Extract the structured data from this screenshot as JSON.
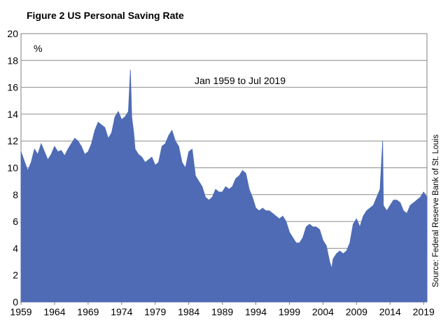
{
  "figure": {
    "title": "Figure 2 US Personal Saving Rate"
  },
  "chart_data": {
    "type": "area",
    "title": "Figure 2 US Personal Saving Rate",
    "ylabel": "%",
    "annotation": "Jan 1959 to Jul 2019",
    "source": "Source: Federal Reserve Bank of St. Louis",
    "ylim": [
      0,
      20
    ],
    "yticks": [
      0,
      2,
      4,
      6,
      8,
      10,
      12,
      14,
      16,
      18,
      20
    ],
    "xlim": [
      1959.0,
      2019.5
    ],
    "xticks": [
      1959,
      1964,
      1969,
      1974,
      1979,
      1984,
      1989,
      1994,
      1999,
      2004,
      2009,
      2014,
      2019
    ],
    "grid": "horizontal",
    "color": "#4F6BB5",
    "series": [
      {
        "x": [
          1959.0,
          1959.5,
          1960.0,
          1960.5,
          1961.0,
          1961.5,
          1962.0,
          1962.5,
          1963.0,
          1963.5,
          1964.0,
          1964.5,
          1965.0,
          1965.5,
          1966.0,
          1966.5,
          1967.0,
          1967.5,
          1968.0,
          1968.5,
          1969.0,
          1969.5,
          1970.0,
          1970.5,
          1971.0,
          1971.5,
          1972.0,
          1972.5,
          1973.0,
          1973.5,
          1974.0,
          1974.5,
          1975.0,
          1975.3,
          1975.5,
          1975.8,
          1976.0,
          1976.5,
          1977.0,
          1977.5,
          1978.0,
          1978.5,
          1979.0,
          1979.5,
          1980.0,
          1980.5,
          1981.0,
          1981.5,
          1982.0,
          1982.5,
          1983.0,
          1983.5,
          1984.0,
          1984.5,
          1985.0,
          1985.5,
          1986.0,
          1986.5,
          1987.0,
          1987.5,
          1988.0,
          1988.5,
          1989.0,
          1989.5,
          1990.0,
          1990.5,
          1991.0,
          1991.5,
          1992.0,
          1992.5,
          1993.0,
          1993.5,
          1994.0,
          1994.5,
          1995.0,
          1995.5,
          1996.0,
          1996.5,
          1997.0,
          1997.5,
          1998.0,
          1998.5,
          1999.0,
          1999.5,
          2000.0,
          2000.5,
          2001.0,
          2001.5,
          2002.0,
          2002.5,
          2003.0,
          2003.5,
          2004.0,
          2004.5,
          2005.0,
          2005.3,
          2005.5,
          2006.0,
          2006.5,
          2007.0,
          2007.5,
          2008.0,
          2008.5,
          2009.0,
          2009.5,
          2010.0,
          2010.5,
          2011.0,
          2011.5,
          2012.0,
          2012.5,
          2012.9,
          2013.0,
          2013.5,
          2014.0,
          2014.5,
          2015.0,
          2015.5,
          2016.0,
          2016.5,
          2017.0,
          2017.5,
          2018.0,
          2018.5,
          2019.0,
          2019.5
        ],
        "values": [
          11.2,
          10.5,
          9.8,
          10.4,
          11.4,
          11.0,
          11.8,
          11.2,
          10.6,
          11.0,
          11.6,
          11.2,
          11.3,
          10.9,
          11.4,
          11.8,
          12.2,
          12.0,
          11.6,
          11.0,
          11.2,
          11.8,
          12.8,
          13.4,
          13.2,
          13.0,
          12.2,
          12.6,
          13.8,
          14.2,
          13.6,
          13.8,
          14.2,
          17.3,
          13.8,
          12.6,
          11.4,
          11.0,
          10.8,
          10.4,
          10.6,
          10.8,
          10.2,
          10.4,
          11.6,
          11.8,
          12.4,
          12.8,
          12.0,
          11.6,
          10.4,
          10.0,
          11.2,
          11.4,
          9.4,
          9.0,
          8.6,
          7.8,
          7.6,
          7.8,
          8.4,
          8.2,
          8.2,
          8.6,
          8.4,
          8.6,
          9.2,
          9.4,
          9.8,
          9.6,
          8.4,
          7.8,
          7.0,
          6.8,
          7.0,
          6.8,
          6.8,
          6.6,
          6.4,
          6.2,
          6.4,
          6.0,
          5.2,
          4.8,
          4.4,
          4.4,
          4.8,
          5.6,
          5.8,
          5.6,
          5.6,
          5.4,
          4.6,
          4.2,
          3.0,
          2.5,
          3.2,
          3.6,
          3.8,
          3.6,
          3.8,
          4.4,
          5.8,
          6.2,
          5.6,
          6.4,
          6.8,
          7.0,
          7.2,
          7.8,
          8.4,
          12.0,
          7.2,
          6.8,
          7.2,
          7.6,
          7.6,
          7.4,
          6.8,
          6.6,
          7.2,
          7.4,
          7.6,
          7.8,
          8.2,
          7.8
        ]
      }
    ]
  }
}
